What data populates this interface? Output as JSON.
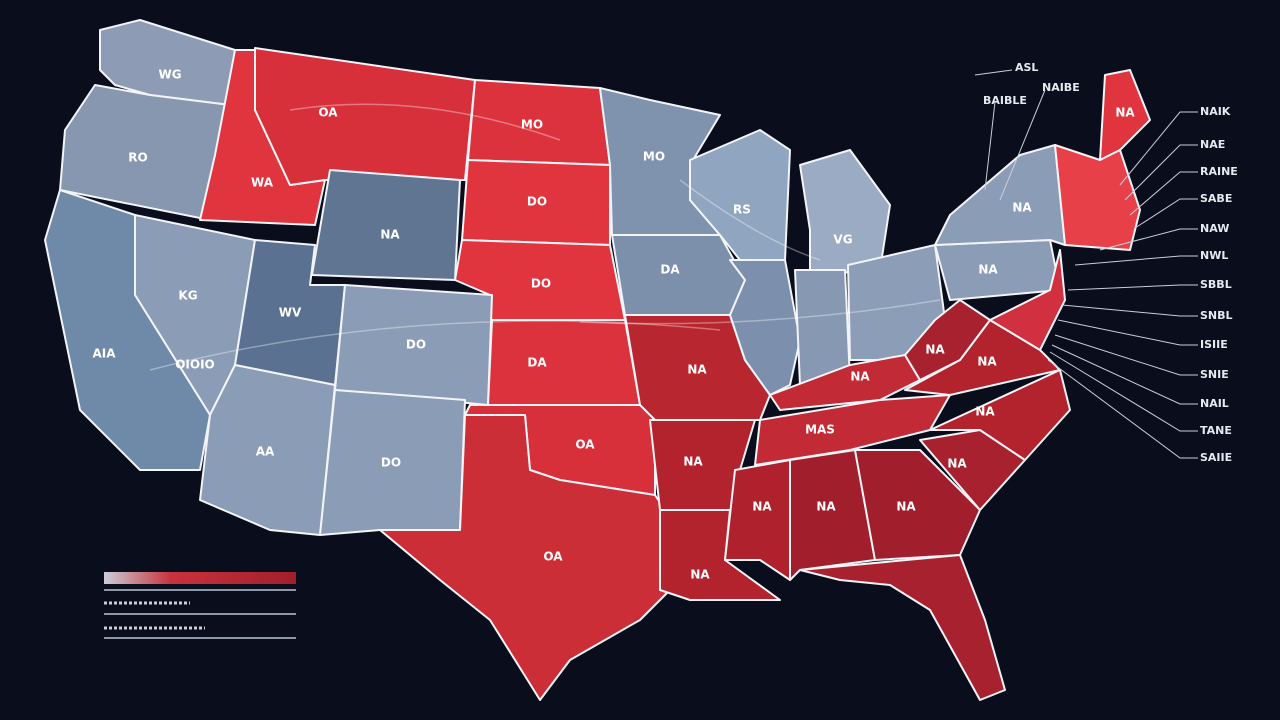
{
  "map": {
    "regions": [
      {
        "label": "WG"
      },
      {
        "label": "OA"
      },
      {
        "label": "MO"
      },
      {
        "label": "RO"
      },
      {
        "label": "WA"
      },
      {
        "label": "DO"
      },
      {
        "label": "MO"
      },
      {
        "label": "RS"
      },
      {
        "label": "VG"
      },
      {
        "label": "NA"
      },
      {
        "label": "DA"
      },
      {
        "label": "DO"
      },
      {
        "label": "KG"
      },
      {
        "label": "WV"
      },
      {
        "label": "DO"
      },
      {
        "label": "AIA"
      },
      {
        "label": "OIOIO"
      },
      {
        "label": "DA"
      },
      {
        "label": "NA"
      },
      {
        "label": "AA"
      },
      {
        "label": "DO"
      },
      {
        "label": "OA"
      },
      {
        "label": "NA"
      },
      {
        "label": "OA"
      },
      {
        "label": "NA"
      },
      {
        "label": "NA"
      },
      {
        "label": "NA"
      },
      {
        "label": "NA"
      },
      {
        "label": "NA"
      },
      {
        "label": "NA"
      },
      {
        "label": "MAS"
      },
      {
        "label": "NA"
      },
      {
        "label": "NA"
      },
      {
        "label": "NA"
      },
      {
        "label": "NA"
      },
      {
        "label": "NA"
      },
      {
        "label": "NA"
      }
    ],
    "top_labels": [
      {
        "label": "ASL"
      },
      {
        "label": "NAIBE"
      },
      {
        "label": "BAIBLE"
      }
    ],
    "callouts": [
      {
        "label": "NAIK"
      },
      {
        "label": "NAE"
      },
      {
        "label": "RAINE"
      },
      {
        "label": "SABE"
      },
      {
        "label": "NAW"
      },
      {
        "label": "NWL"
      },
      {
        "label": "SBBL"
      },
      {
        "label": "SNBL"
      },
      {
        "label": "ISIIE"
      },
      {
        "label": "SNIE"
      },
      {
        "label": "NAIL"
      },
      {
        "label": "TANE"
      },
      {
        "label": "SAIIE"
      }
    ]
  }
}
